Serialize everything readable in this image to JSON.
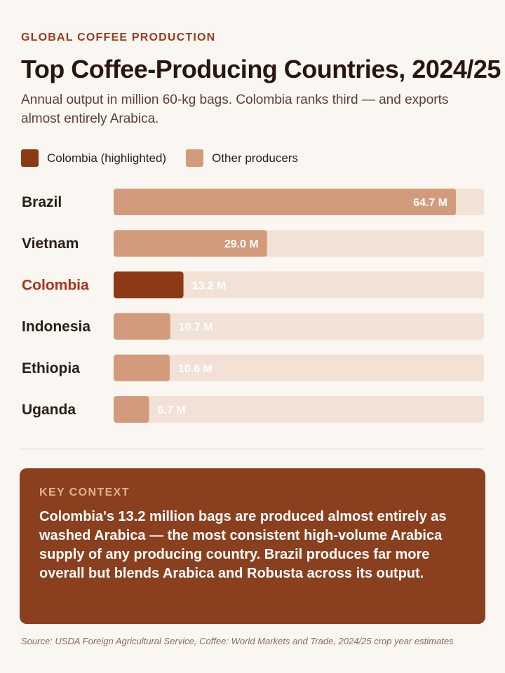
{
  "header": {
    "eyebrow": "GLOBAL COFFEE PRODUCTION",
    "title": "Top Coffee-Producing Countries, 2024/25",
    "subtitle": "Annual output in million 60-kg bags. Colombia ranks third — and exports almost entirely Arabica."
  },
  "legend": {
    "items": [
      {
        "label": "Colombia (highlighted)",
        "color": "#8b3a15"
      },
      {
        "label": "Other producers",
        "color": "#d29c7c"
      }
    ]
  },
  "chart_data": {
    "type": "bar",
    "orientation": "horizontal",
    "categories": [
      "Brazil",
      "Vietnam",
      "Colombia",
      "Indonesia",
      "Ethiopia",
      "Uganda"
    ],
    "values": [
      64.7,
      29.0,
      13.2,
      10.7,
      10.6,
      6.7
    ],
    "value_labels": [
      "64.7 M",
      "29.0 M",
      "13.2 M",
      "10.7 M",
      "10.6 M",
      "6.7 M"
    ],
    "highlight": "Colombia",
    "xlim": [
      0,
      70
    ],
    "grid": false,
    "legend_position": "top-left",
    "colors": {
      "highlight_bar": "#8b3a15",
      "highlight_label": "#a8321a",
      "other_bar": "#d29c7c",
      "track": "#f2e1d5",
      "label": "#2a1c16"
    }
  },
  "context": {
    "kicker": "KEY CONTEXT",
    "body": "Colombia's 13.2 million bags are produced almost entirely as washed Arabica — the most consistent high-volume Arabica supply of any producing country. Brazil produces far more overall but blends Arabica and Robusta across its output."
  },
  "source": "Source: USDA Foreign Agricultural Service, Coffee: World Markets and Trade, 2024/25 crop year estimates"
}
